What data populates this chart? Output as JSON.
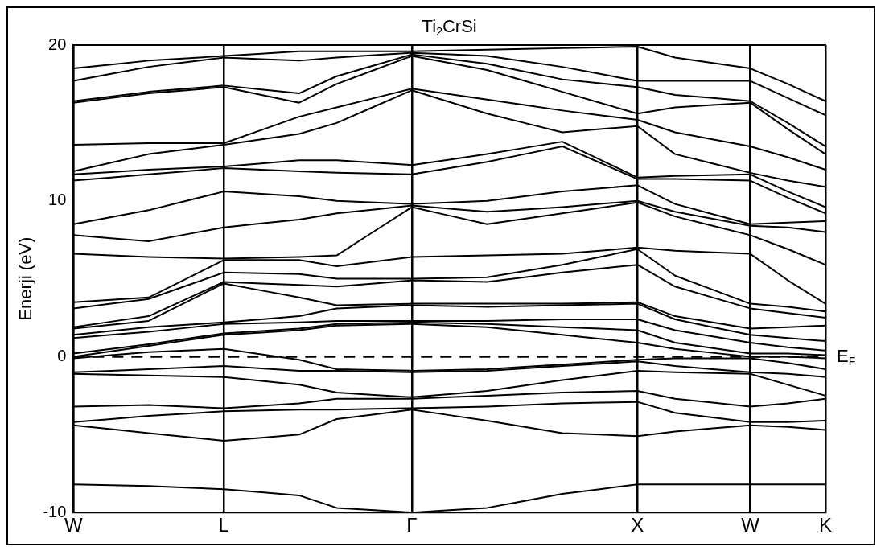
{
  "chart_data": {
    "type": "line",
    "title": "Ti$_{2}$CrSi",
    "ylabel": "Enerji (eV)",
    "marker": "none",
    "line_style": "solid",
    "grid": "x",
    "categories": [
      "W",
      null,
      null,
      null,
      "L",
      null,
      null,
      null,
      null,
      "Γ",
      null,
      null,
      null,
      null,
      null,
      "X",
      null,
      null,
      "W",
      null,
      "K"
    ],
    "ylim": [
      -10,
      20
    ],
    "yticks": [
      -10,
      0,
      10,
      20
    ],
    "ref_lines": [
      {
        "axis": "y",
        "value": 0,
        "label": "E$_{F}$",
        "color": "#000000",
        "line_style": "dashed"
      }
    ],
    "series": [
      {
        "color": "#000000",
        "values": [
          -8.2,
          -8.25,
          -8.3,
          -8.4,
          -8.5,
          -8.7,
          -8.9,
          -9.7,
          -9.85,
          -10,
          -9.85,
          -9.7,
          -9.25,
          -8.8,
          -8.5,
          -8.2,
          -8.2,
          -8.2,
          -8.2,
          -8.2,
          -8.2
        ]
      },
      {
        "color": "#000000",
        "values": [
          -4.4,
          -4.65,
          -4.9,
          -5.15,
          -5.4,
          -5.2,
          -5.0,
          -4.0,
          -3.7,
          -3.4,
          -3.75,
          -4.1,
          -4.5,
          -4.9,
          -5.0,
          -5.1,
          -4.8,
          -4.6,
          -4.4,
          -4.5,
          -4.7
        ]
      },
      {
        "color": "#000000",
        "values": [
          -4.2,
          -4.0,
          -3.8,
          -3.65,
          -3.5,
          -3.45,
          -3.4,
          -3.4,
          -3.35,
          -3.3,
          -3.25,
          -3.2,
          -3.1,
          -3.0,
          -2.95,
          -2.9,
          -3.6,
          -3.9,
          -4.2,
          -4.2,
          -4.1
        ]
      },
      {
        "color": "#000000",
        "values": [
          -3.2,
          -3.15,
          -3.1,
          -3.2,
          -3.3,
          -3.15,
          -3.0,
          -2.7,
          -2.7,
          -2.7,
          -2.6,
          -2.5,
          -2.4,
          -2.3,
          -2.25,
          -2.2,
          -2.7,
          -2.95,
          -3.2,
          -3.0,
          -2.7
        ]
      },
      {
        "color": "#000000",
        "values": [
          -1.1,
          -1.15,
          -1.2,
          -1.25,
          -1.3,
          -1.55,
          -1.8,
          -2.3,
          -2.45,
          -2.6,
          -2.4,
          -2.2,
          -1.85,
          -1.5,
          -1.2,
          -0.9,
          -1.0,
          -1.05,
          -1.1,
          -1.8,
          -2.5
        ]
      },
      {
        "color": "#000000",
        "values": [
          -1.0,
          -0.9,
          -0.8,
          -0.7,
          -0.6,
          -0.75,
          -0.9,
          -0.9,
          -0.95,
          -1.0,
          -0.95,
          -0.9,
          -0.75,
          -0.6,
          -0.45,
          -0.3,
          -0.6,
          -0.8,
          -1.0,
          -1.1,
          -1.3
        ]
      },
      {
        "color": "#000000",
        "values": [
          -0.1,
          0.1,
          0.3,
          0.4,
          0.5,
          0.15,
          -0.2,
          -0.8,
          -0.85,
          -0.9,
          -0.85,
          -0.8,
          -0.65,
          -0.5,
          -0.35,
          -0.2,
          -0.1,
          -0.1,
          -0.1,
          -0.4,
          -0.8
        ]
      },
      {
        "color": "#000000",
        "values": [
          0,
          0.35,
          0.7,
          1.05,
          1.4,
          1.55,
          1.7,
          2.0,
          2.05,
          2.1,
          2.0,
          1.9,
          1.65,
          1.4,
          1.15,
          0.9,
          0.5,
          0.25,
          0,
          0,
          -0.1
        ]
      },
      {
        "color": "#000000",
        "values": [
          0.2,
          0.5,
          0.8,
          1.15,
          1.5,
          1.65,
          1.8,
          2.1,
          2.15,
          2.2,
          2.15,
          2.1,
          2.0,
          1.9,
          1.8,
          1.7,
          0.9,
          0.55,
          0.2,
          0.2,
          0.1
        ]
      },
      {
        "color": "#000000",
        "values": [
          1.2,
          1.4,
          1.6,
          1.85,
          2.1,
          2.15,
          2.2,
          2.3,
          2.3,
          2.3,
          2.3,
          2.3,
          2.35,
          2.4,
          2.4,
          2.4,
          1.7,
          1.3,
          0.9,
          0.6,
          0.4
        ]
      },
      {
        "color": "#000000",
        "values": [
          1.4,
          1.65,
          1.9,
          2.05,
          2.2,
          2.4,
          2.6,
          3.1,
          3.2,
          3.3,
          3.25,
          3.2,
          3.25,
          3.3,
          3.35,
          3.4,
          2.4,
          1.9,
          1.4,
          1.2,
          1.0
        ]
      },
      {
        "color": "#000000",
        "values": [
          1.8,
          2.05,
          2.3,
          3.5,
          4.7,
          4.25,
          3.8,
          3.3,
          3.35,
          3.4,
          3.4,
          3.4,
          3.4,
          3.4,
          3.45,
          3.5,
          2.6,
          2.2,
          1.8,
          1.9,
          2.0
        ]
      },
      {
        "color": "#000000",
        "values": [
          1.9,
          2.25,
          2.6,
          3.7,
          4.8,
          4.7,
          4.6,
          4.5,
          4.7,
          4.9,
          4.85,
          4.8,
          5.1,
          5.4,
          5.65,
          5.9,
          4.5,
          3.8,
          3.1,
          2.8,
          2.5
        ]
      },
      {
        "color": "#000000",
        "values": [
          3.1,
          3.4,
          3.7,
          4.55,
          5.4,
          5.35,
          5.3,
          5.0,
          5.0,
          5.0,
          5.05,
          5.1,
          5.5,
          5.9,
          6.4,
          6.9,
          5.2,
          4.3,
          3.4,
          3.2,
          2.9
        ]
      },
      {
        "color": "#000000",
        "values": [
          3.5,
          3.65,
          3.8,
          5.0,
          6.2,
          6.2,
          6.2,
          5.8,
          6.1,
          6.4,
          6.45,
          6.5,
          6.55,
          6.6,
          6.8,
          7.0,
          6.8,
          6.7,
          6.6,
          4.9,
          3.4
        ]
      },
      {
        "color": "#000000",
        "values": [
          6.6,
          6.5,
          6.4,
          6.35,
          6.3,
          6.35,
          6.4,
          6.5,
          8.05,
          9.6,
          9.05,
          8.5,
          8.85,
          9.2,
          9.55,
          9.9,
          9.0,
          8.4,
          7.8,
          6.9,
          5.9
        ]
      },
      {
        "color": "#000000",
        "values": [
          7.8,
          7.6,
          7.4,
          7.85,
          8.3,
          8.55,
          8.8,
          9.2,
          9.45,
          9.7,
          9.5,
          9.3,
          9.45,
          9.6,
          9.8,
          10.0,
          9.3,
          8.85,
          8.4,
          8.3,
          8.0
        ]
      },
      {
        "color": "#000000",
        "values": [
          8.5,
          8.95,
          9.4,
          10.0,
          10.6,
          10.45,
          10.3,
          10.0,
          9.9,
          9.8,
          9.9,
          10.0,
          10.3,
          10.6,
          10.8,
          11.0,
          9.8,
          9.15,
          8.5,
          8.6,
          8.7
        ]
      },
      {
        "color": "#000000",
        "values": [
          11.3,
          11.5,
          11.7,
          11.9,
          12.1,
          12.0,
          11.9,
          11.8,
          11.75,
          11.7,
          12.1,
          12.5,
          13.0,
          13.5,
          12.45,
          11.4,
          11.4,
          11.35,
          11.3,
          10.2,
          9.2
        ]
      },
      {
        "color": "#000000",
        "values": [
          11.7,
          11.85,
          12.0,
          12.1,
          12.2,
          12.4,
          12.6,
          12.6,
          12.45,
          12.3,
          12.65,
          13.0,
          13.4,
          13.8,
          12.65,
          11.5,
          11.6,
          11.65,
          11.7,
          10.6,
          9.6
        ]
      },
      {
        "color": "#000000",
        "values": [
          11.9,
          12.45,
          13.0,
          13.3,
          13.6,
          13.95,
          14.3,
          15.0,
          16.05,
          17.1,
          16.35,
          15.6,
          15.0,
          14.4,
          14.6,
          14.8,
          13.0,
          12.4,
          11.8,
          11.3,
          10.9
        ]
      },
      {
        "color": "#000000",
        "values": [
          13.6,
          13.65,
          13.7,
          13.7,
          13.7,
          14.55,
          15.4,
          16.0,
          16.6,
          17.2,
          16.85,
          16.5,
          16.15,
          15.8,
          15.5,
          15.2,
          14.4,
          13.95,
          13.5,
          12.8,
          12.0
        ]
      },
      {
        "color": "#000000",
        "values": [
          16.3,
          16.6,
          16.9,
          17.1,
          17.3,
          16.8,
          16.3,
          17.5,
          18.4,
          19.3,
          18.85,
          18.4,
          17.7,
          17.0,
          16.3,
          15.6,
          16.0,
          16.15,
          16.3,
          14.6,
          13.0
        ]
      },
      {
        "color": "#000000",
        "values": [
          16.4,
          16.7,
          17.0,
          17.2,
          17.4,
          17.15,
          16.9,
          18.0,
          18.7,
          19.4,
          19.1,
          18.8,
          18.3,
          17.8,
          17.55,
          17.3,
          16.8,
          16.6,
          16.4,
          15.0,
          13.5
        ]
      },
      {
        "color": "#000000",
        "values": [
          17.7,
          18.15,
          18.6,
          18.9,
          19.2,
          19.1,
          19.0,
          19.2,
          19.35,
          19.5,
          19.4,
          19.3,
          18.95,
          18.6,
          18.15,
          17.7,
          17.7,
          17.7,
          17.7,
          16.6,
          15.5
        ]
      },
      {
        "color": "#000000",
        "values": [
          18.5,
          18.75,
          19.0,
          19.15,
          19.3,
          19.45,
          19.6,
          19.6,
          19.6,
          19.6,
          19.65,
          19.7,
          19.75,
          19.8,
          19.85,
          19.9,
          19.2,
          18.85,
          18.5,
          17.5,
          16.4
        ]
      }
    ]
  }
}
